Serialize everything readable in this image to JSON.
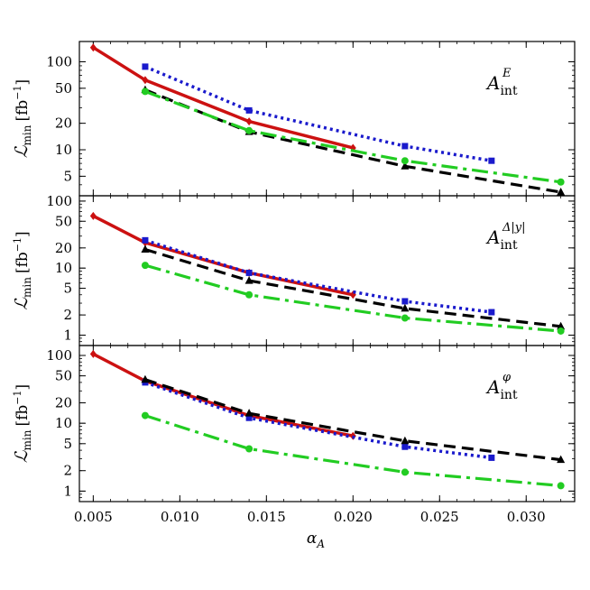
{
  "chart_data": {
    "type": "line",
    "xlabel": "αA",
    "xlabel_main": "α",
    "xlabel_sub": "A",
    "ylabel_main": "ℒ",
    "ylabel_sub": "min",
    "ylabel_unit": "[fb",
    "ylabel_exp": "−1",
    "ylabel_close": "]",
    "xlim": [
      0.0042,
      0.0328
    ],
    "xticks": [
      0.005,
      0.01,
      0.015,
      0.02,
      0.025,
      0.03
    ],
    "xtick_labels": [
      "0.005",
      "0.010",
      "0.015",
      "0.020",
      "0.025",
      "0.030"
    ],
    "y_scale": "log",
    "grid": false,
    "series_styles": [
      {
        "key": "red",
        "color": "#cc1111",
        "dash": "",
        "width": 3.5,
        "marker": "diamond"
      },
      {
        "key": "blue",
        "color": "#1a1acc",
        "dash": "3,4",
        "width": 3.5,
        "marker": "square"
      },
      {
        "key": "black",
        "color": "#000000",
        "dash": "13,7",
        "width": 3.2,
        "marker": "triangle"
      },
      {
        "key": "green",
        "color": "#22cc22",
        "dash": "18,6,4,6",
        "width": 3.2,
        "marker": "circle"
      }
    ],
    "panels": [
      {
        "label_main": "A",
        "label_sub": "int",
        "label_sup": "E",
        "ylim": [
          3,
          170
        ],
        "yticks": [
          5,
          10,
          20,
          50,
          100
        ],
        "ytick_labels": [
          "5",
          "10",
          "20",
          "50",
          "100"
        ],
        "series": [
          {
            "style": "red",
            "x": [
              0.005,
              0.008,
              0.014,
              0.02
            ],
            "y": [
              145,
              62,
              21,
              10.5
            ]
          },
          {
            "style": "blue",
            "x": [
              0.008,
              0.014,
              0.023,
              0.028
            ],
            "y": [
              88,
              28,
              11,
              7.5
            ]
          },
          {
            "style": "black",
            "x": [
              0.008,
              0.014,
              0.023,
              0.032
            ],
            "y": [
              48,
              16,
              6.5,
              3.3
            ]
          },
          {
            "style": "green",
            "x": [
              0.008,
              0.014,
              0.023,
              0.032
            ],
            "y": [
              46,
              16.5,
              7.5,
              4.3
            ]
          }
        ]
      },
      {
        "label_main": "A",
        "label_sub": "int",
        "label_sup": "Δ|y|",
        "ylim": [
          0.7,
          120
        ],
        "yticks": [
          1,
          2,
          5,
          10,
          20,
          50,
          100
        ],
        "ytick_labels": [
          "1",
          "2",
          "5",
          "10",
          "20",
          "50",
          "100"
        ],
        "series": [
          {
            "style": "red",
            "x": [
              0.005,
              0.008,
              0.014,
              0.02
            ],
            "y": [
              60,
              24,
              8.5,
              4
            ]
          },
          {
            "style": "blue",
            "x": [
              0.008,
              0.014,
              0.023,
              0.028
            ],
            "y": [
              26,
              8.5,
              3.2,
              2.2
            ]
          },
          {
            "style": "black",
            "x": [
              0.008,
              0.014,
              0.023,
              0.032
            ],
            "y": [
              19,
              6.5,
              2.5,
              1.35
            ]
          },
          {
            "style": "green",
            "x": [
              0.008,
              0.014,
              0.023,
              0.032
            ],
            "y": [
              11,
              4,
              1.8,
              1.15
            ]
          }
        ]
      },
      {
        "label_main": "A",
        "label_sub": "int",
        "label_sup": "φ",
        "ylim": [
          0.7,
          140
        ],
        "yticks": [
          1,
          2,
          5,
          10,
          20,
          50,
          100
        ],
        "ytick_labels": [
          "1",
          "2",
          "5",
          "10",
          "20",
          "50",
          "100"
        ],
        "series": [
          {
            "style": "red",
            "x": [
              0.005,
              0.008,
              0.014,
              0.02
            ],
            "y": [
              105,
              42,
              13,
              6.5
            ]
          },
          {
            "style": "blue",
            "x": [
              0.008,
              0.014,
              0.023,
              0.028
            ],
            "y": [
              40,
              12,
              4.5,
              3.1
            ]
          },
          {
            "style": "black",
            "x": [
              0.008,
              0.014,
              0.023,
              0.032
            ],
            "y": [
              44,
              14,
              5.5,
              2.9
            ]
          },
          {
            "style": "green",
            "x": [
              0.008,
              0.014,
              0.023,
              0.032
            ],
            "y": [
              13,
              4.2,
              1.9,
              1.2
            ]
          }
        ]
      }
    ]
  }
}
